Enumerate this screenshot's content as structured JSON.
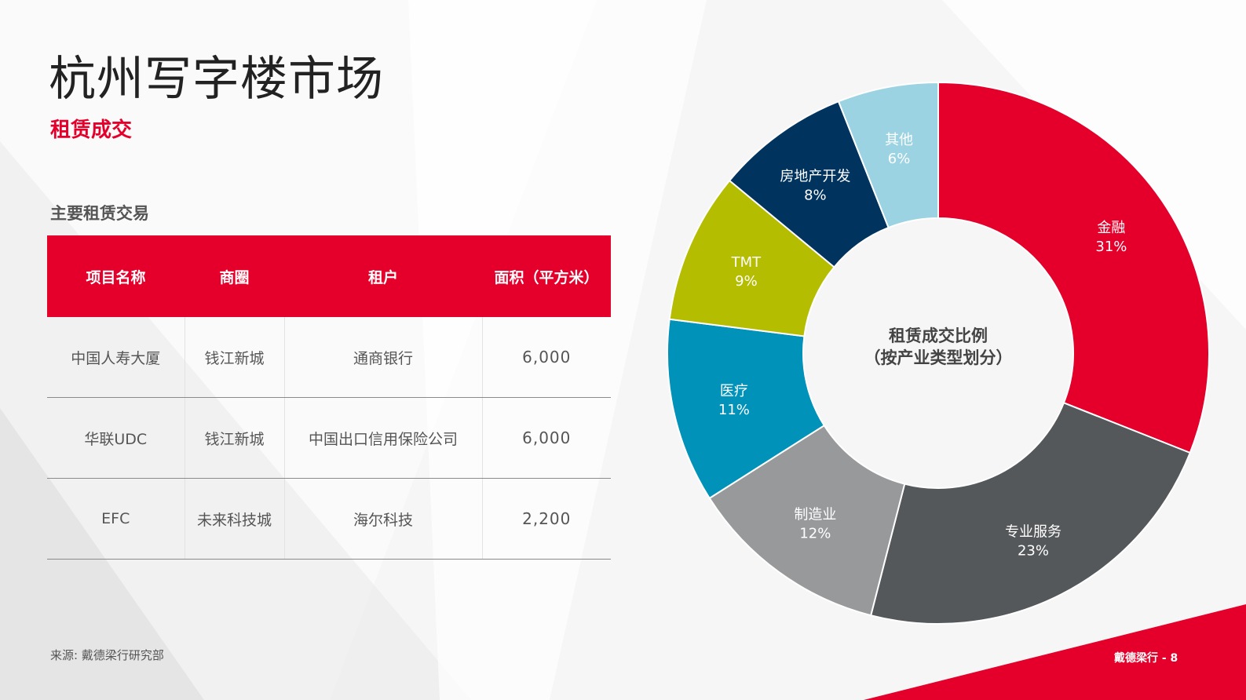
{
  "header": {
    "title": "杭州写字楼市场",
    "subtitle": "租赁成交"
  },
  "table": {
    "title": "主要租赁交易",
    "columns": [
      "项目名称",
      "商圈",
      "租户",
      "面积（平方米）"
    ],
    "rows": [
      [
        "中国人寿大厦",
        "钱江新城",
        "通商银行",
        "6,000"
      ],
      [
        "华联UDC",
        "钱江新城",
        "中国出口信用保险公司",
        "6,000"
      ],
      [
        "EFC",
        "未来科技城",
        "海尔科技",
        "2,200"
      ]
    ]
  },
  "footer": {
    "source": "来源: 戴德梁行研究部",
    "page": "戴德梁行 - 8"
  },
  "colors": {
    "accent": "#e4002b"
  },
  "chart_data": {
    "type": "pie",
    "donut": true,
    "center_label": [
      "租赁成交比例",
      "（按产业类型划分）"
    ],
    "unit": "%",
    "slices": [
      {
        "label": "金融",
        "value": 31,
        "color": "#e4002b"
      },
      {
        "label": "专业服务",
        "value": 23,
        "color": "#54585a"
      },
      {
        "label": "制造业",
        "value": 12,
        "color": "#97999b"
      },
      {
        "label": "医疗",
        "value": 11,
        "color": "#0092b8"
      },
      {
        "label": "TMT",
        "value": 9,
        "color": "#b5bd00"
      },
      {
        "label": "房地产开发",
        "value": 8,
        "color": "#00345e"
      },
      {
        "label": "其他",
        "value": 6,
        "color": "#9bd3e2"
      }
    ]
  }
}
